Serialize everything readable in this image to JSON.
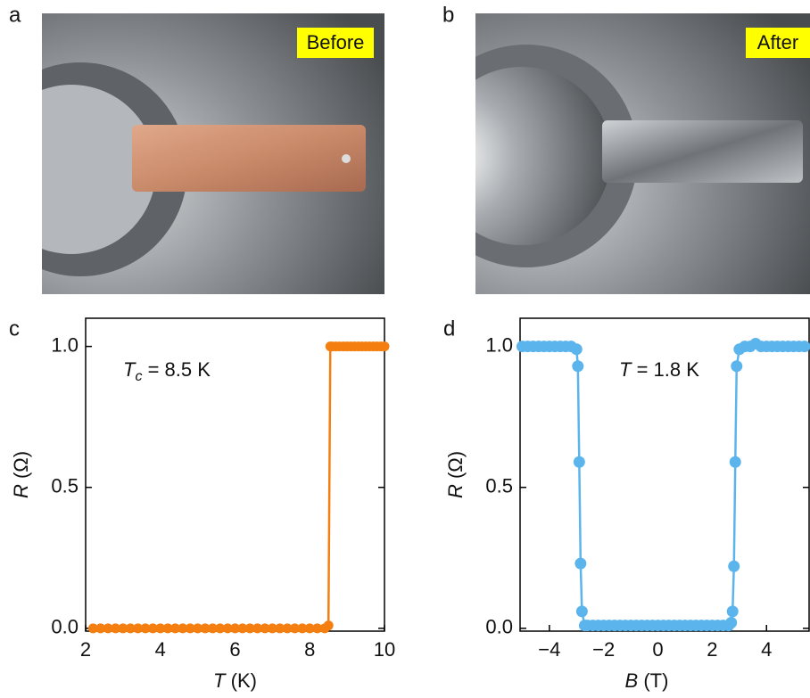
{
  "photos": [
    {
      "panel_label": "a",
      "caption": "Before"
    },
    {
      "panel_label": "b",
      "caption": "After"
    }
  ],
  "chart_data": [
    {
      "type": "line",
      "panel_label": "c",
      "annotation": {
        "symbol": "T",
        "subscript": "c",
        "text": "= 8.5 K"
      },
      "x_label": {
        "symbol": "T",
        "unit": "(K)"
      },
      "y_label": {
        "symbol": "R",
        "unit": "(Ω)"
      },
      "x": [
        2.2,
        2.4,
        2.6,
        2.8,
        3.0,
        3.2,
        3.4,
        3.6,
        3.8,
        4.0,
        4.2,
        4.4,
        4.6,
        4.8,
        5.0,
        5.2,
        5.4,
        5.6,
        5.8,
        6.0,
        6.2,
        6.4,
        6.6,
        6.8,
        7.0,
        7.2,
        7.4,
        7.6,
        7.8,
        8.0,
        8.2,
        8.4,
        8.5,
        8.55,
        8.6,
        8.7,
        8.8,
        8.9,
        9.0,
        9.1,
        9.2,
        9.3,
        9.4,
        9.5,
        9.6,
        9.7,
        9.8,
        9.9,
        10.0
      ],
      "series": [
        {
          "color": "#f47f10",
          "values": [
            0,
            0,
            0,
            0,
            0,
            0,
            0,
            0,
            0,
            0,
            0,
            0,
            0,
            0,
            0,
            0,
            0,
            0,
            0,
            0,
            0,
            0,
            0,
            0,
            0,
            0,
            0,
            0,
            0,
            0,
            0,
            0,
            0.01,
            1.0,
            1.0,
            1.0,
            1.0,
            1.0,
            1.0,
            1.0,
            1.0,
            1.0,
            1.0,
            1.0,
            1.0,
            1.0,
            1.0,
            1.0,
            1.0
          ]
        }
      ],
      "xlim": [
        2,
        10
      ],
      "ylim": [
        -0.01,
        1.1
      ],
      "xticks": [
        2,
        4,
        6,
        8,
        10
      ],
      "yticks": [
        {
          "value": 0,
          "label": "0.0"
        },
        {
          "value": 0.5,
          "label": "0.5"
        },
        {
          "value": 1,
          "label": "1.0"
        }
      ]
    },
    {
      "type": "line",
      "panel_label": "d",
      "annotation": {
        "symbol": "T",
        "text": "= 1.8 K"
      },
      "x_label": {
        "symbol": "B",
        "unit": "(T)"
      },
      "y_label": {
        "symbol": "R",
        "unit": "(Ω)"
      },
      "x": [
        -5.0,
        -4.8,
        -4.6,
        -4.4,
        -4.2,
        -4.0,
        -3.8,
        -3.6,
        -3.4,
        -3.2,
        -3.0,
        -2.95,
        -2.9,
        -2.85,
        -2.8,
        -2.7,
        -2.6,
        -2.4,
        -2.2,
        -2.0,
        -1.8,
        -1.6,
        -1.4,
        -1.2,
        -1.0,
        -0.8,
        -0.6,
        -0.4,
        -0.2,
        0,
        0.2,
        0.4,
        0.6,
        0.8,
        1.0,
        1.2,
        1.4,
        1.6,
        1.8,
        2.0,
        2.2,
        2.4,
        2.6,
        2.7,
        2.75,
        2.8,
        2.85,
        2.9,
        3.0,
        3.2,
        3.4,
        3.6,
        3.8,
        4.0,
        4.2,
        4.4,
        4.6,
        4.8,
        5.0,
        5.2,
        5.4
      ],
      "series": [
        {
          "color": "#5bb5ec",
          "values": [
            1.0,
            1.0,
            1.0,
            1.0,
            1.0,
            1.0,
            1.0,
            1.0,
            1.0,
            1.0,
            0.99,
            0.93,
            0.59,
            0.23,
            0.06,
            0.01,
            0.01,
            0.01,
            0.01,
            0.01,
            0.01,
            0.01,
            0.01,
            0.01,
            0.01,
            0.01,
            0.01,
            0.01,
            0.01,
            0.01,
            0.01,
            0.01,
            0.01,
            0.01,
            0.01,
            0.01,
            0.01,
            0.01,
            0.01,
            0.01,
            0.01,
            0.01,
            0.01,
            0.02,
            0.06,
            0.22,
            0.59,
            0.93,
            0.99,
            1.0,
            1.0,
            1.01,
            1.0,
            1.0,
            1.0,
            1.0,
            1.0,
            1.0,
            1.0,
            1.0,
            1.0
          ]
        }
      ],
      "xlim": [
        -5.08,
        5.57
      ],
      "ylim": [
        -0.01,
        1.1
      ],
      "xticks": [
        {
          "value": -4,
          "label": "−4"
        },
        {
          "value": -2,
          "label": "−2"
        },
        0,
        2,
        4
      ],
      "yticks": [
        {
          "value": 0,
          "label": "0.0"
        },
        {
          "value": 0.5,
          "label": "0.5"
        },
        {
          "value": 1,
          "label": "1.0"
        }
      ]
    }
  ]
}
